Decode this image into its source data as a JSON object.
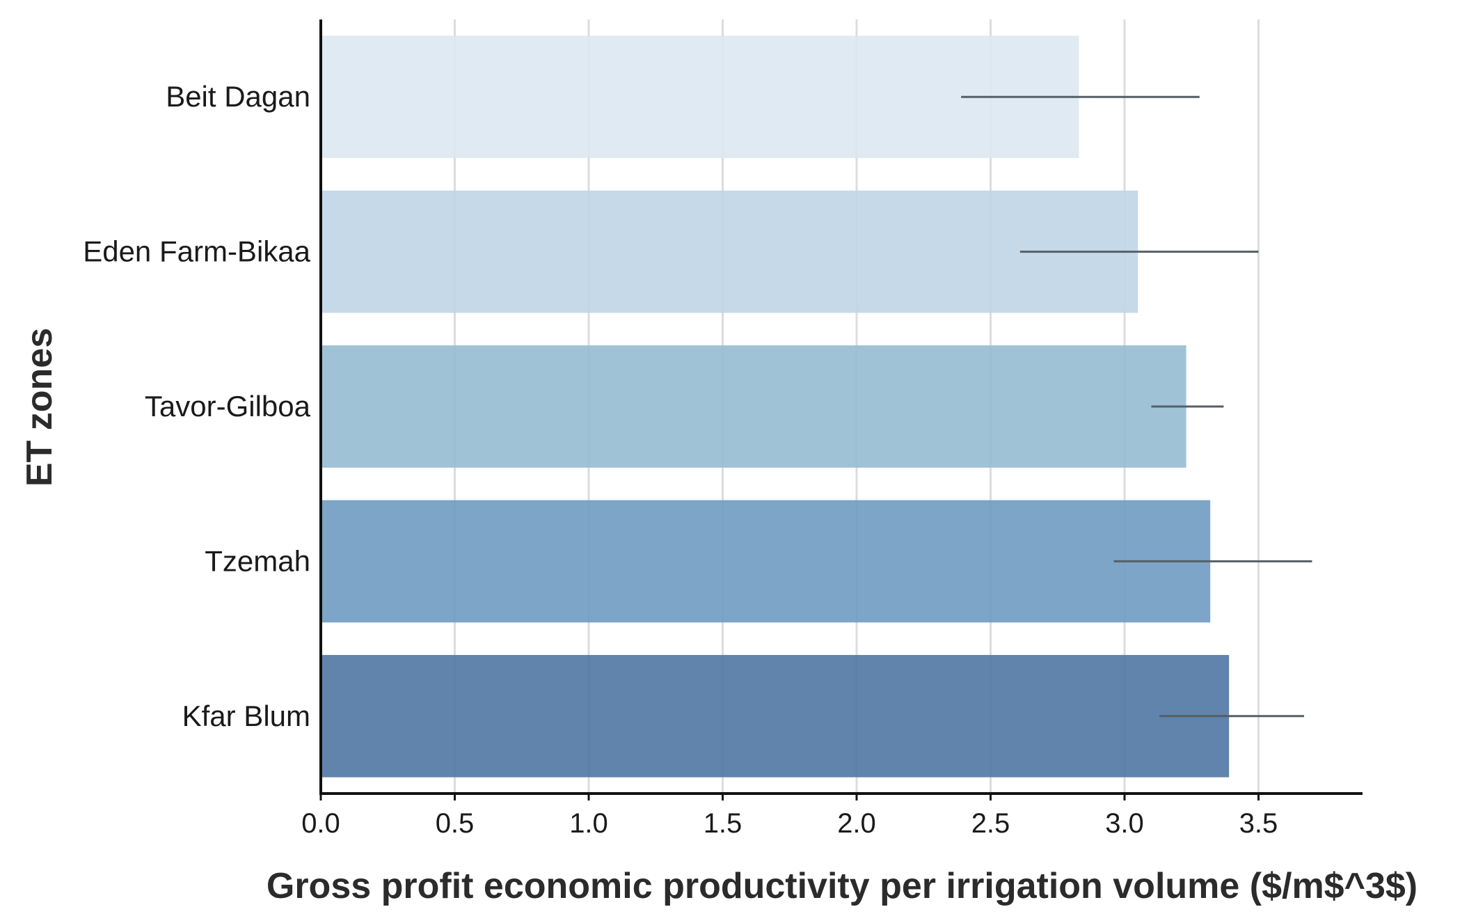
{
  "chart_data": {
    "type": "bar",
    "orientation": "horizontal",
    "xlabel": "Gross profit economic productivity per irrigation volume ($/m$^3$)",
    "ylabel": "ET zones",
    "xlim": [
      0,
      3.9
    ],
    "xticks": [
      "0.0",
      "0.5",
      "1.0",
      "1.5",
      "2.0",
      "2.5",
      "3.0",
      "3.5"
    ],
    "grid": "vertical",
    "categories": [
      "Beit Dagan",
      "Eden Farm-Bikaa",
      "Tavor-Gilboa",
      "Tzemah",
      "Kfar Blum"
    ],
    "values": [
      2.83,
      3.05,
      3.23,
      3.32,
      3.39
    ],
    "error_low": [
      2.39,
      2.61,
      3.1,
      2.96,
      3.13
    ],
    "error_high": [
      3.28,
      3.5,
      3.37,
      3.7,
      3.67
    ],
    "colors": [
      "#dde8f2",
      "#c0d5e5",
      "#95bbd3",
      "#6f9bc2",
      "#4f77a3"
    ]
  }
}
